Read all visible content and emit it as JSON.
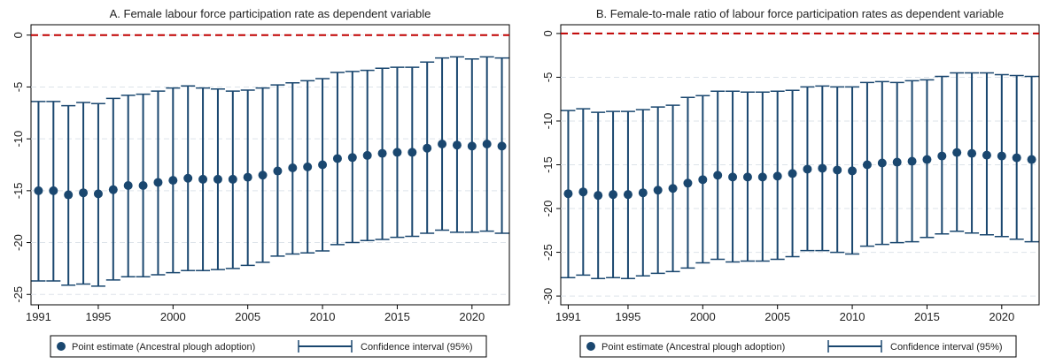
{
  "chart_data": [
    {
      "type": "errorbar",
      "title": "A. Female labour force participation rate as dependent variable",
      "x": [
        1991,
        1992,
        1993,
        1994,
        1995,
        1996,
        1997,
        1998,
        1999,
        2000,
        2001,
        2002,
        2003,
        2004,
        2005,
        2006,
        2007,
        2008,
        2009,
        2010,
        2011,
        2012,
        2013,
        2014,
        2015,
        2016,
        2017,
        2018,
        2019,
        2020,
        2021,
        2022
      ],
      "series": [
        {
          "name": "Point estimate (Ancestral plough adoption)",
          "color": "#1a476f",
          "values": [
            -15.0,
            -15.0,
            -15.4,
            -15.2,
            -15.3,
            -14.9,
            -14.5,
            -14.5,
            -14.2,
            -14.0,
            -13.8,
            -13.9,
            -13.9,
            -13.9,
            -13.7,
            -13.5,
            -13.1,
            -12.8,
            -12.7,
            -12.5,
            -11.9,
            -11.8,
            -11.6,
            -11.4,
            -11.3,
            -11.3,
            -10.9,
            -10.5,
            -10.6,
            -10.7,
            -10.5,
            -10.7
          ]
        },
        {
          "name": "Confidence interval (95%)",
          "color": "#1a476f",
          "lower": [
            -23.7,
            -23.7,
            -24.1,
            -24.0,
            -24.2,
            -23.6,
            -23.3,
            -23.3,
            -23.1,
            -22.9,
            -22.7,
            -22.7,
            -22.6,
            -22.5,
            -22.2,
            -21.9,
            -21.3,
            -21.1,
            -21.0,
            -20.8,
            -20.2,
            -20.0,
            -19.8,
            -19.7,
            -19.5,
            -19.4,
            -19.1,
            -18.8,
            -19.0,
            -19.0,
            -18.9,
            -19.1
          ],
          "upper": [
            -6.4,
            -6.4,
            -6.8,
            -6.5,
            -6.6,
            -6.1,
            -5.8,
            -5.7,
            -5.4,
            -5.1,
            -4.9,
            -5.1,
            -5.2,
            -5.4,
            -5.3,
            -5.1,
            -4.8,
            -4.6,
            -4.4,
            -4.2,
            -3.6,
            -3.5,
            -3.4,
            -3.2,
            -3.1,
            -3.1,
            -2.6,
            -2.2,
            -2.1,
            -2.3,
            -2.1,
            -2.2
          ]
        }
      ],
      "xlim": [
        1990.5,
        2022.5
      ],
      "xticks": [
        1991,
        1995,
        2000,
        2005,
        2010,
        2015,
        2020
      ],
      "ylim": [
        -26,
        1
      ],
      "yticks": [
        0,
        -5,
        -10,
        -15,
        -20,
        -25
      ],
      "grid": true,
      "reference_line": {
        "value": 0,
        "color": "#c00000"
      }
    },
    {
      "type": "errorbar",
      "title": "B. Female-to-male ratio of labour force participation rates as dependent variable",
      "x": [
        1991,
        1992,
        1993,
        1994,
        1995,
        1996,
        1997,
        1998,
        1999,
        2000,
        2001,
        2002,
        2003,
        2004,
        2005,
        2006,
        2007,
        2008,
        2009,
        2010,
        2011,
        2012,
        2013,
        2014,
        2015,
        2016,
        2017,
        2018,
        2019,
        2020,
        2021,
        2022
      ],
      "series": [
        {
          "name": "Point estimate (Ancestral plough adoption)",
          "color": "#1a476f",
          "values": [
            -18.3,
            -18.1,
            -18.5,
            -18.4,
            -18.4,
            -18.2,
            -17.9,
            -17.7,
            -17.1,
            -16.7,
            -16.2,
            -16.4,
            -16.4,
            -16.4,
            -16.3,
            -16.0,
            -15.5,
            -15.4,
            -15.6,
            -15.7,
            -15.0,
            -14.8,
            -14.7,
            -14.6,
            -14.4,
            -14.0,
            -13.6,
            -13.7,
            -13.9,
            -14.0,
            -14.2,
            -14.4
          ]
        },
        {
          "name": "Confidence interval (95%)",
          "color": "#1a476f",
          "lower": [
            -27.9,
            -27.6,
            -28.0,
            -27.9,
            -28.0,
            -27.7,
            -27.4,
            -27.2,
            -26.8,
            -26.2,
            -25.8,
            -26.1,
            -26.0,
            -26.0,
            -25.8,
            -25.5,
            -24.8,
            -24.8,
            -25.0,
            -25.2,
            -24.3,
            -24.1,
            -23.9,
            -23.8,
            -23.3,
            -22.9,
            -22.6,
            -22.8,
            -23.0,
            -23.2,
            -23.5,
            -23.8
          ],
          "upper": [
            -8.8,
            -8.6,
            -9.0,
            -8.9,
            -8.9,
            -8.7,
            -8.4,
            -8.2,
            -7.3,
            -7.1,
            -6.6,
            -6.6,
            -6.7,
            -6.7,
            -6.6,
            -6.5,
            -6.1,
            -6.0,
            -6.1,
            -6.1,
            -5.6,
            -5.5,
            -5.6,
            -5.4,
            -5.3,
            -4.9,
            -4.5,
            -4.5,
            -4.5,
            -4.7,
            -4.8,
            -4.9
          ]
        }
      ],
      "xlim": [
        1990.5,
        2022.5
      ],
      "xticks": [
        1991,
        1995,
        2000,
        2005,
        2010,
        2015,
        2020
      ],
      "ylim": [
        -31,
        1
      ],
      "yticks": [
        0,
        -5,
        -10,
        -15,
        -20,
        -25,
        -30
      ],
      "grid": true,
      "reference_line": {
        "value": 0,
        "color": "#c00000"
      }
    }
  ]
}
